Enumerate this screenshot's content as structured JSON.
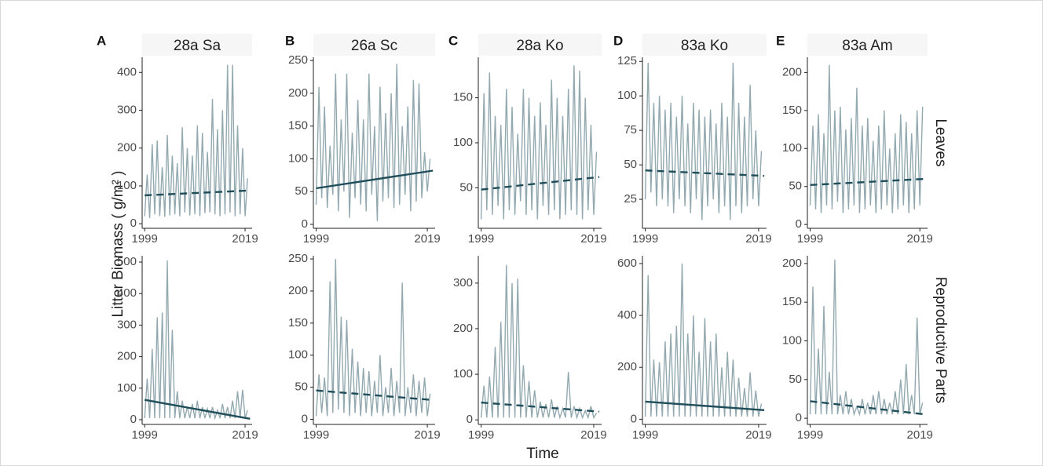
{
  "y_label": "Litter Biomass ( g/m² )",
  "x_label": "Time",
  "chart_data": [
    {
      "type": "line",
      "panel": "A",
      "title": "28a Sa",
      "color": "#93a9b0",
      "xlim": [
        1998.5,
        2020.4
      ],
      "xticks": [
        1999,
        2019
      ],
      "ylim": [
        -12,
        440
      ],
      "yticks": [
        0,
        100,
        200,
        300,
        400
      ],
      "x": [
        1999,
        1999.5,
        2000,
        2000.5,
        2001,
        2001.5,
        2002,
        2002.5,
        2003,
        2003.5,
        2004,
        2004.5,
        2005,
        2005.5,
        2006,
        2006.5,
        2007,
        2007.5,
        2008,
        2008.5,
        2009,
        2009.5,
        2010,
        2010.5,
        2011,
        2011.5,
        2012,
        2012.5,
        2013,
        2013.5,
        2014,
        2014.5,
        2015,
        2015.5,
        2016,
        2016.5,
        2017,
        2017.5,
        2018,
        2018.5,
        2019,
        2019.5
      ],
      "values": [
        20,
        130,
        15,
        210,
        25,
        220,
        20,
        150,
        18,
        235,
        22,
        180,
        25,
        160,
        20,
        255,
        30,
        200,
        22,
        180,
        25,
        260,
        20,
        240,
        28,
        190,
        30,
        330,
        25,
        250,
        20,
        300,
        25,
        420,
        30,
        420,
        20,
        260,
        25,
        200,
        20,
        120
      ],
      "trend": {
        "x": [
          1999,
          2020
        ],
        "values": [
          75,
          88
        ],
        "dashed": true,
        "color": "#1f4e5a"
      }
    },
    {
      "type": "line",
      "panel": "B",
      "title": "26a Sc",
      "color": "#93a9b0",
      "xlim": [
        1998.5,
        2020.4
      ],
      "xticks": [
        1999,
        2019
      ],
      "ylim": [
        -6,
        255
      ],
      "yticks": [
        0,
        50,
        100,
        150,
        200,
        250
      ],
      "x": [
        1999,
        1999.5,
        2000,
        2000.5,
        2001,
        2001.5,
        2002,
        2002.5,
        2003,
        2003.5,
        2004,
        2004.5,
        2005,
        2005.5,
        2006,
        2006.5,
        2007,
        2007.5,
        2008,
        2008.5,
        2009,
        2009.5,
        2010,
        2010.5,
        2011,
        2011.5,
        2012,
        2012.5,
        2013,
        2013.5,
        2014,
        2014.5,
        2015,
        2015.5,
        2016,
        2016.5,
        2017,
        2017.5,
        2018,
        2018.5,
        2019,
        2019.5
      ],
      "values": [
        30,
        210,
        40,
        180,
        25,
        120,
        45,
        230,
        20,
        160,
        50,
        230,
        10,
        140,
        40,
        190,
        30,
        160,
        20,
        230,
        45,
        150,
        5,
        210,
        35,
        170,
        40,
        200,
        25,
        245,
        30,
        150,
        45,
        180,
        20,
        220,
        35,
        215,
        40,
        110,
        50,
        100
      ],
      "trend": {
        "x": [
          1999,
          2020
        ],
        "values": [
          55,
          82
        ],
        "dashed": false,
        "color": "#1f4e5a"
      }
    },
    {
      "type": "line",
      "panel": "C",
      "title": "28a Ko",
      "color": "#93a9b0",
      "xlim": [
        1998.5,
        2020.4
      ],
      "xticks": [
        1999,
        2019
      ],
      "ylim": [
        5,
        195
      ],
      "yticks": [
        50,
        100,
        150
      ],
      "x": [
        1999,
        1999.5,
        2000,
        2000.5,
        2001,
        2001.5,
        2002,
        2002.5,
        2003,
        2003.5,
        2004,
        2004.5,
        2005,
        2005.5,
        2006,
        2006.5,
        2007,
        2007.5,
        2008,
        2008.5,
        2009,
        2009.5,
        2010,
        2010.5,
        2011,
        2011.5,
        2012,
        2012.5,
        2013,
        2013.5,
        2014,
        2014.5,
        2015,
        2015.5,
        2016,
        2016.5,
        2017,
        2017.5,
        2018,
        2018.5,
        2019,
        2019.5
      ],
      "values": [
        15,
        155,
        25,
        178,
        20,
        130,
        30,
        120,
        15,
        160,
        25,
        140,
        20,
        110,
        35,
        160,
        20,
        150,
        25,
        130,
        15,
        145,
        30,
        120,
        20,
        170,
        25,
        150,
        15,
        130,
        20,
        160,
        25,
        186,
        20,
        180,
        15,
        150,
        25,
        120,
        20,
        90
      ],
      "trend": {
        "x": [
          1999,
          2020
        ],
        "values": [
          48,
          62
        ],
        "dashed": true,
        "color": "#1f4e5a"
      }
    },
    {
      "type": "line",
      "panel": "D",
      "title": "83a Ko",
      "color": "#93a9b0",
      "xlim": [
        1998.5,
        2020.4
      ],
      "xticks": [
        1999,
        2019
      ],
      "ylim": [
        4,
        128
      ],
      "yticks": [
        25,
        50,
        75,
        100,
        125
      ],
      "x": [
        1999,
        1999.5,
        2000,
        2000.5,
        2001,
        2001.5,
        2002,
        2002.5,
        2003,
        2003.5,
        2004,
        2004.5,
        2005,
        2005.5,
        2006,
        2006.5,
        2007,
        2007.5,
        2008,
        2008.5,
        2009,
        2009.5,
        2010,
        2010.5,
        2011,
        2011.5,
        2012,
        2012.5,
        2013,
        2013.5,
        2014,
        2014.5,
        2015,
        2015.5,
        2016,
        2016.5,
        2017,
        2017.5,
        2018,
        2018.5,
        2019,
        2019.5
      ],
      "values": [
        25,
        124,
        30,
        95,
        20,
        100,
        25,
        90,
        20,
        95,
        15,
        85,
        25,
        100,
        20,
        80,
        15,
        95,
        25,
        90,
        10,
        85,
        20,
        90,
        25,
        80,
        15,
        95,
        20,
        85,
        10,
        124,
        20,
        95,
        15,
        85,
        20,
        108,
        25,
        75,
        20,
        60
      ],
      "trend": {
        "x": [
          1999,
          2020
        ],
        "values": [
          46,
          42
        ],
        "dashed": true,
        "color": "#1f4e5a"
      }
    },
    {
      "type": "line",
      "panel": "E",
      "title": "83a Am",
      "facet_label": "Leaves",
      "color": "#93a9b0",
      "xlim": [
        1998.5,
        2020.4
      ],
      "xticks": [
        1999,
        2019
      ],
      "ylim": [
        -5,
        220
      ],
      "yticks": [
        0,
        50,
        100,
        150,
        200
      ],
      "x": [
        1999,
        1999.5,
        2000,
        2000.5,
        2001,
        2001.5,
        2002,
        2002.5,
        2003,
        2003.5,
        2004,
        2004.5,
        2005,
        2005.5,
        2006,
        2006.5,
        2007,
        2007.5,
        2008,
        2008.5,
        2009,
        2009.5,
        2010,
        2010.5,
        2011,
        2011.5,
        2012,
        2012.5,
        2013,
        2013.5,
        2014,
        2014.5,
        2015,
        2015.5,
        2016,
        2016.5,
        2017,
        2017.5,
        2018,
        2018.5,
        2019,
        2019.5
      ],
      "values": [
        25,
        130,
        20,
        145,
        15,
        120,
        25,
        210,
        20,
        150,
        30,
        155,
        15,
        125,
        20,
        140,
        25,
        180,
        15,
        130,
        20,
        140,
        25,
        110,
        15,
        130,
        20,
        150,
        25,
        100,
        15,
        120,
        20,
        145,
        25,
        135,
        15,
        120,
        20,
        150,
        25,
        155
      ],
      "trend": {
        "x": [
          1999,
          2020
        ],
        "values": [
          52,
          60
        ],
        "dashed": true,
        "color": "#1f4e5a"
      }
    },
    {
      "type": "line",
      "color": "#93a9b0",
      "xlim": [
        1998.5,
        2020.4
      ],
      "xticks": [
        1999,
        2019
      ],
      "ylim": [
        -15,
        520
      ],
      "yticks": [
        0,
        100,
        200,
        300,
        400,
        500
      ],
      "x": [
        1999,
        1999.5,
        2000,
        2000.5,
        2001,
        2001.5,
        2002,
        2002.5,
        2003,
        2003.5,
        2004,
        2004.5,
        2005,
        2005.5,
        2006,
        2006.5,
        2007,
        2007.5,
        2008,
        2008.5,
        2009,
        2009.5,
        2010,
        2010.5,
        2011,
        2011.5,
        2012,
        2012.5,
        2013,
        2013.5,
        2014,
        2014.5,
        2015,
        2015.5,
        2016,
        2016.5,
        2017,
        2017.5,
        2018,
        2018.5,
        2019,
        2019.5
      ],
      "values": [
        5,
        130,
        5,
        225,
        5,
        325,
        5,
        340,
        5,
        505,
        5,
        285,
        5,
        90,
        5,
        60,
        5,
        40,
        5,
        50,
        5,
        60,
        5,
        40,
        5,
        35,
        5,
        40,
        5,
        30,
        5,
        50,
        5,
        40,
        5,
        60,
        5,
        90,
        5,
        95,
        5,
        30
      ],
      "trend": {
        "x": [
          1999,
          2020
        ],
        "values": [
          63,
          3
        ],
        "dashed": false,
        "color": "#1f4e5a"
      }
    },
    {
      "type": "line",
      "color": "#93a9b0",
      "xlim": [
        1998.5,
        2020.4
      ],
      "xticks": [
        1999,
        2019
      ],
      "ylim": [
        -8,
        255
      ],
      "yticks": [
        0,
        50,
        100,
        150,
        200,
        250
      ],
      "x": [
        1999,
        1999.5,
        2000,
        2000.5,
        2001,
        2001.5,
        2002,
        2002.5,
        2003,
        2003.5,
        2004,
        2004.5,
        2005,
        2005.5,
        2006,
        2006.5,
        2007,
        2007.5,
        2008,
        2008.5,
        2009,
        2009.5,
        2010,
        2010.5,
        2011,
        2011.5,
        2012,
        2012.5,
        2013,
        2013.5,
        2014,
        2014.5,
        2015,
        2015.5,
        2016,
        2016.5,
        2017,
        2017.5,
        2018,
        2018.5,
        2019,
        2019.5
      ],
      "values": [
        5,
        70,
        10,
        65,
        5,
        215,
        10,
        250,
        15,
        160,
        10,
        155,
        5,
        110,
        10,
        90,
        5,
        80,
        10,
        75,
        5,
        60,
        10,
        100,
        5,
        50,
        10,
        80,
        5,
        60,
        10,
        213,
        5,
        50,
        10,
        70,
        5,
        60,
        10,
        65,
        5,
        40
      ],
      "trend": {
        "x": [
          1999,
          2020
        ],
        "values": [
          45,
          30
        ],
        "dashed": true,
        "color": "#1f4e5a"
      }
    },
    {
      "type": "line",
      "color": "#93a9b0",
      "xlim": [
        1998.5,
        2020.4
      ],
      "xticks": [
        1999,
        2019
      ],
      "ylim": [
        -10,
        360
      ],
      "yticks": [
        0,
        100,
        200,
        300
      ],
      "x": [
        1999,
        1999.5,
        2000,
        2000.5,
        2001,
        2001.5,
        2002,
        2002.5,
        2003,
        2003.5,
        2004,
        2004.5,
        2005,
        2005.5,
        2006,
        2006.5,
        2007,
        2007.5,
        2008,
        2008.5,
        2009,
        2009.5,
        2010,
        2010.5,
        2011,
        2011.5,
        2012,
        2012.5,
        2013,
        2013.5,
        2014,
        2014.5,
        2015,
        2015.5,
        2016,
        2016.5,
        2017,
        2017.5,
        2018,
        2018.5,
        2019,
        2019.5
      ],
      "values": [
        5,
        75,
        5,
        95,
        5,
        160,
        5,
        215,
        5,
        340,
        5,
        300,
        5,
        310,
        5,
        120,
        5,
        85,
        5,
        65,
        5,
        40,
        5,
        35,
        5,
        45,
        5,
        30,
        5,
        25,
        5,
        105,
        5,
        30,
        5,
        25,
        5,
        20,
        5,
        30,
        5,
        15
      ],
      "trend": {
        "x": [
          1999,
          2020
        ],
        "values": [
          38,
          18
        ],
        "dashed": true,
        "color": "#1f4e5a"
      }
    },
    {
      "type": "line",
      "color": "#93a9b0",
      "xlim": [
        1998.5,
        2020.4
      ],
      "xticks": [
        1999,
        2019
      ],
      "ylim": [
        -20,
        630
      ],
      "yticks": [
        0,
        200,
        400,
        600
      ],
      "x": [
        1999,
        1999.5,
        2000,
        2000.5,
        2001,
        2001.5,
        2002,
        2002.5,
        2003,
        2003.5,
        2004,
        2004.5,
        2005,
        2005.5,
        2006,
        2006.5,
        2007,
        2007.5,
        2008,
        2008.5,
        2009,
        2009.5,
        2010,
        2010.5,
        2011,
        2011.5,
        2012,
        2012.5,
        2013,
        2013.5,
        2014,
        2014.5,
        2015,
        2015.5,
        2016,
        2016.5,
        2017,
        2017.5,
        2018,
        2018.5,
        2019,
        2019.5
      ],
      "values": [
        10,
        555,
        10,
        230,
        10,
        220,
        10,
        300,
        10,
        330,
        10,
        360,
        10,
        600,
        10,
        330,
        10,
        400,
        10,
        260,
        10,
        390,
        10,
        300,
        10,
        330,
        10,
        200,
        10,
        260,
        10,
        230,
        10,
        160,
        10,
        120,
        10,
        180,
        10,
        110,
        10,
        60
      ],
      "trend": {
        "x": [
          1999,
          2020
        ],
        "values": [
          68,
          35
        ],
        "dashed": false,
        "color": "#1f4e5a"
      }
    },
    {
      "type": "line",
      "facet_label": "Reproductive Parts",
      "color": "#93a9b0",
      "xlim": [
        1998.5,
        2020.4
      ],
      "xticks": [
        1999,
        2019
      ],
      "ylim": [
        -8,
        210
      ],
      "yticks": [
        0,
        50,
        100,
        150,
        200
      ],
      "x": [
        1999,
        1999.5,
        2000,
        2000.5,
        2001,
        2001.5,
        2002,
        2002.5,
        2003,
        2003.5,
        2004,
        2004.5,
        2005,
        2005.5,
        2006,
        2006.5,
        2007,
        2007.5,
        2008,
        2008.5,
        2009,
        2009.5,
        2010,
        2010.5,
        2011,
        2011.5,
        2012,
        2012.5,
        2013,
        2013.5,
        2014,
        2014.5,
        2015,
        2015.5,
        2016,
        2016.5,
        2017,
        2017.5,
        2018,
        2018.5,
        2019,
        2019.5
      ],
      "values": [
        5,
        170,
        5,
        90,
        5,
        145,
        5,
        60,
        5,
        205,
        5,
        30,
        5,
        35,
        5,
        25,
        5,
        15,
        5,
        25,
        5,
        20,
        5,
        30,
        5,
        35,
        5,
        25,
        5,
        20,
        5,
        35,
        5,
        50,
        5,
        70,
        5,
        30,
        5,
        130,
        5,
        20
      ],
      "trend": {
        "x": [
          1999,
          2020
        ],
        "values": [
          22,
          5
        ],
        "dashed": true,
        "color": "#1f4e5a"
      }
    }
  ]
}
